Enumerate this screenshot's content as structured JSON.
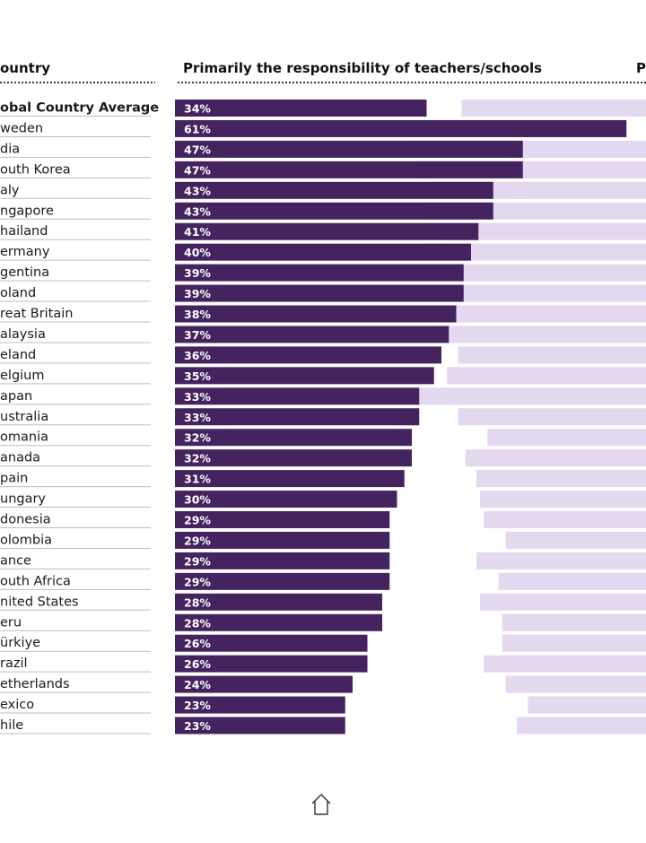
{
  "chart_data": {
    "type": "bar",
    "header_category": "ountry",
    "header_series": "Primarily the responsibility of teachers/schools",
    "header_right": "P",
    "categories": [
      "obal Country Average",
      "weden",
      "dia",
      "outh Korea",
      "aly",
      "ngapore",
      "hailand",
      "ermany",
      "gentina",
      "oland",
      "reat Britain",
      "alaysia",
      "eland",
      "elgium",
      "apan",
      "ustralia",
      "omania",
      "anada",
      "pain",
      "ungary",
      "donesia",
      "olombia",
      "ance",
      "outh Africa",
      "nited States",
      "eru",
      "ürkiye",
      "razil",
      "etherlands",
      "exico",
      "hile"
    ],
    "series": [
      {
        "values": [
          34,
          61,
          47,
          47,
          43,
          43,
          41,
          40,
          39,
          39,
          38,
          37,
          36,
          35,
          33,
          33,
          32,
          32,
          31,
          30,
          29,
          29,
          29,
          29,
          28,
          28,
          26,
          26,
          24,
          23,
          23
        ],
        "labels": [
          "34%",
          "61%",
          "47%",
          "47%",
          "43%",
          "43%",
          "41%",
          "40%",
          "39%",
          "39%",
          "38%",
          "37%",
          "36%",
          "35%",
          "33%",
          "33%",
          "32%",
          "32%",
          "31%",
          "30%",
          "29%",
          "29%",
          "29%",
          "29%",
          "28%",
          "28%",
          "26%",
          "26%",
          "24%",
          "23%",
          "23%"
        ]
      }
    ],
    "right_bar_start_values": [
      44,
      null,
      60,
      57,
      53,
      53,
      48,
      54,
      47,
      52,
      49,
      53,
      45,
      48,
      60,
      45,
      37,
      43,
      40,
      39,
      38,
      32,
      40,
      34,
      39,
      33,
      33,
      38,
      32,
      26,
      29
    ],
    "colors": {
      "primary": "#45235f",
      "secondary": "#e3d8ef",
      "divider": "#2f3a4a",
      "row_line": "#bdbdbd"
    }
  },
  "icons": {
    "home": "home-icon"
  }
}
